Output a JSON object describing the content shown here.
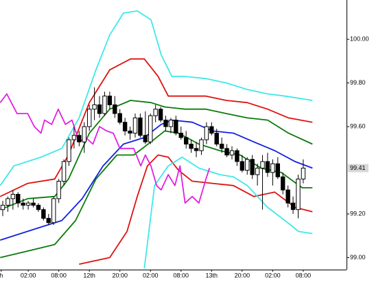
{
  "chart_data": {
    "type": "candlestick",
    "xlim": [
      -0.54,
      67.5
    ],
    "ylim": [
      98.945,
      100.18
    ],
    "yticks": [
      {
        "value": 100,
        "label": "100.00"
      },
      {
        "value": 99.8,
        "label": "99.80"
      },
      {
        "value": 99.6,
        "label": "99.60"
      },
      {
        "value": 99.2,
        "label": "99.20"
      },
      {
        "value": 99,
        "label": "99.00"
      }
    ],
    "xticks": [
      {
        "value": -0.3,
        "label": "h"
      },
      {
        "value": 5,
        "label": "02:00"
      },
      {
        "value": 11,
        "label": "08:00"
      },
      {
        "value": 17,
        "label": "12th"
      },
      {
        "value": 23,
        "label": "20:00"
      },
      {
        "value": 29,
        "label": "02:00"
      },
      {
        "value": 35,
        "label": "08:00"
      },
      {
        "value": 41,
        "label": "13th"
      },
      {
        "value": 47,
        "label": "20:00"
      },
      {
        "value": 53,
        "label": "02:00"
      },
      {
        "value": 59,
        "label": "08:00"
      }
    ],
    "last_price_label": "99.41",
    "up_color": "#ffffff",
    "down_color": "#000000",
    "candles": {
      "x": [
        0,
        1,
        2,
        3,
        4,
        5,
        6,
        7,
        8,
        9,
        10,
        11,
        12,
        13,
        14,
        15,
        16,
        17,
        18,
        19,
        20,
        21,
        22,
        23,
        24,
        25,
        26,
        27,
        28,
        29,
        30,
        31,
        32,
        33,
        34,
        35,
        36,
        37,
        38,
        39,
        40,
        41,
        42,
        43,
        44,
        45,
        46,
        47,
        48,
        49,
        50,
        51,
        52,
        53,
        54,
        55,
        56,
        57,
        58,
        59
      ],
      "open": [
        99.22,
        99.24,
        99.27,
        99.29,
        99.25,
        99.24,
        99.25,
        99.24,
        99.22,
        99.18,
        99.16,
        99.27,
        99.35,
        99.44,
        99.54,
        99.56,
        99.53,
        99.6,
        99.68,
        99.7,
        99.66,
        99.74,
        99.7,
        99.66,
        99.62,
        99.58,
        99.57,
        99.64,
        99.56,
        99.53,
        99.65,
        99.68,
        99.63,
        99.6,
        99.63,
        99.57,
        99.55,
        99.52,
        99.5,
        99.49,
        99.54,
        99.6,
        99.57,
        99.52,
        99.5,
        99.47,
        99.49,
        99.44,
        99.4,
        99.45,
        99.38,
        99.41,
        99.44,
        99.39,
        99.43,
        99.37,
        99.31,
        99.25,
        99.22,
        99.36
      ],
      "high": [
        99.26,
        99.28,
        99.31,
        99.3,
        99.27,
        99.26,
        99.27,
        99.25,
        99.23,
        99.2,
        99.28,
        99.36,
        99.45,
        99.55,
        99.6,
        99.58,
        99.62,
        99.7,
        99.78,
        99.74,
        99.76,
        99.76,
        99.74,
        99.68,
        99.64,
        99.6,
        99.66,
        99.66,
        99.67,
        99.66,
        99.7,
        99.69,
        99.65,
        99.64,
        99.65,
        99.6,
        99.58,
        99.54,
        99.53,
        99.55,
        99.62,
        99.62,
        99.59,
        99.55,
        99.52,
        99.51,
        99.5,
        99.47,
        99.46,
        99.47,
        99.43,
        99.47,
        99.48,
        99.45,
        99.46,
        99.39,
        99.33,
        99.28,
        99.38,
        99.45
      ],
      "low": [
        99.19,
        99.21,
        99.22,
        99.23,
        99.22,
        99.22,
        99.23,
        99.21,
        99.17,
        99.15,
        99.15,
        99.25,
        99.33,
        99.42,
        99.5,
        99.51,
        99.48,
        99.58,
        99.63,
        99.64,
        99.65,
        99.68,
        99.64,
        99.61,
        99.56,
        99.54,
        99.55,
        99.55,
        99.52,
        99.52,
        99.62,
        99.62,
        99.58,
        99.57,
        99.56,
        99.54,
        99.5,
        99.48,
        99.46,
        99.47,
        99.52,
        99.56,
        99.51,
        99.48,
        99.46,
        99.45,
        99.42,
        99.39,
        99.38,
        99.36,
        99.33,
        99.22,
        99.37,
        99.33,
        99.36,
        99.29,
        99.23,
        99.2,
        99.18,
        99.34
      ],
      "close": [
        99.24,
        99.27,
        99.29,
        99.25,
        99.24,
        99.25,
        99.24,
        99.22,
        99.18,
        99.16,
        99.27,
        99.35,
        99.44,
        99.54,
        99.56,
        99.53,
        99.6,
        99.68,
        99.7,
        99.66,
        99.74,
        99.7,
        99.66,
        99.62,
        99.58,
        99.57,
        99.64,
        99.56,
        99.53,
        99.65,
        99.68,
        99.63,
        99.6,
        99.63,
        99.57,
        99.55,
        99.52,
        99.5,
        99.49,
        99.54,
        99.6,
        99.57,
        99.52,
        99.5,
        99.47,
        99.49,
        99.44,
        99.4,
        99.45,
        99.38,
        99.41,
        99.44,
        99.39,
        99.43,
        99.37,
        99.31,
        99.25,
        99.22,
        99.36,
        99.41
      ]
    },
    "series": [
      {
        "color": "#3ee8e8",
        "x": [
          -0.5,
          2.2,
          7.5,
          11.6,
          15.0,
          18.3,
          21.0,
          23.7,
          26.4,
          29.1,
          31.1,
          33.2,
          35.8,
          39.9,
          43.9,
          48.0,
          52.0,
          55.4,
          60.8
        ],
        "values": [
          99.33,
          99.42,
          99.46,
          99.5,
          99.64,
          99.86,
          100.02,
          100.12,
          100.13,
          100.09,
          99.93,
          99.83,
          99.83,
          99.82,
          99.8,
          99.77,
          99.75,
          99.74,
          99.72
        ]
      },
      {
        "color": "#e01010",
        "x": [
          -0.5,
          4.9,
          10.2,
          12.9,
          17.0,
          21.0,
          25.1,
          27.8,
          30.5,
          32.5,
          35.8,
          39.9,
          43.9,
          48.0,
          52.0,
          56.1,
          60.8
        ],
        "values": [
          99.28,
          99.34,
          99.36,
          99.47,
          99.71,
          99.86,
          99.91,
          99.91,
          99.83,
          99.74,
          99.74,
          99.74,
          99.72,
          99.71,
          99.68,
          99.64,
          99.62
        ]
      },
      {
        "color": "#0a7a0a",
        "x": [
          -0.5,
          4.9,
          10.2,
          12.9,
          17.0,
          21.0,
          25.1,
          29.1,
          31.8,
          35.8,
          39.9,
          43.9,
          48.0,
          52.0,
          56.1,
          60.8
        ],
        "values": [
          99.22,
          99.27,
          99.28,
          99.36,
          99.57,
          99.68,
          99.72,
          99.71,
          99.69,
          99.68,
          99.68,
          99.66,
          99.64,
          99.63,
          99.57,
          99.52
        ]
      },
      {
        "color": "#1020e0",
        "x": [
          -0.5,
          3.5,
          7.5,
          11.6,
          15.6,
          19.7,
          23.7,
          27.8,
          31.1,
          33.2,
          37.2,
          41.2,
          45.3,
          49.3,
          53.4,
          57.4,
          60.8
        ],
        "values": [
          99.08,
          99.11,
          99.14,
          99.17,
          99.27,
          99.42,
          99.52,
          99.55,
          99.61,
          99.63,
          99.62,
          99.58,
          99.57,
          99.53,
          99.49,
          99.44,
          99.41
        ]
      },
      {
        "color": "#0a7a0a",
        "x": [
          -0.5,
          4.9,
          10.2,
          14.3,
          18.3,
          22.4,
          25.7,
          29.1,
          31.8,
          34.5,
          38.5,
          42.6,
          46.6,
          50.7,
          54.7,
          58.8,
          60.8
        ],
        "values": [
          99.0,
          99.03,
          99.06,
          99.17,
          99.36,
          99.47,
          99.47,
          99.53,
          99.58,
          99.57,
          99.52,
          99.49,
          99.47,
          99.41,
          99.39,
          99.32,
          99.32
        ]
      },
      {
        "color": "#e01010",
        "x": [
          15.0,
          21.0,
          24.4,
          26.4,
          28.4,
          30.5,
          32.5,
          34.5,
          37.2,
          41.2,
          45.3,
          49.3,
          53.4,
          57.4,
          60.8
        ],
        "values": [
          98.97,
          99.0,
          99.12,
          99.28,
          99.42,
          99.47,
          99.46,
          99.4,
          99.35,
          99.34,
          99.33,
          99.28,
          99.3,
          99.23,
          99.21
        ]
      },
      {
        "color": "#3ee8e8",
        "x": [
          27.8,
          29.8,
          32.5,
          35.2,
          38.5,
          42.6,
          45.3,
          48.0,
          52.0,
          55.4,
          58.1,
          60.8
        ],
        "values": [
          98.95,
          99.33,
          99.42,
          99.46,
          99.41,
          99.38,
          99.37,
          99.33,
          99.23,
          99.17,
          99.12,
          99.11
        ]
      },
      {
        "color": "#e020e0",
        "x": [
          -0.5,
          0.8,
          2.8,
          4.9,
          6.2,
          7.5,
          8.2,
          9.6,
          10.9,
          12.3,
          13.6,
          15.0,
          16.3,
          17.7,
          19.0,
          20.4,
          21.7,
          23.0,
          24.4,
          25.7,
          27.1,
          28.0,
          29.1,
          30.2,
          31.1,
          32.5,
          33.8,
          34.8,
          35.8,
          37.2,
          38.5,
          39.9,
          40.6
        ],
        "values": [
          99.71,
          99.75,
          99.66,
          99.66,
          99.6,
          99.57,
          99.63,
          99.61,
          99.68,
          99.61,
          99.63,
          99.53,
          99.55,
          99.52,
          99.6,
          99.58,
          99.57,
          99.5,
          99.5,
          99.5,
          99.42,
          99.47,
          99.42,
          99.33,
          99.31,
          99.38,
          99.33,
          99.42,
          99.25,
          99.28,
          99.25,
          99.36,
          99.41
        ]
      }
    ]
  }
}
